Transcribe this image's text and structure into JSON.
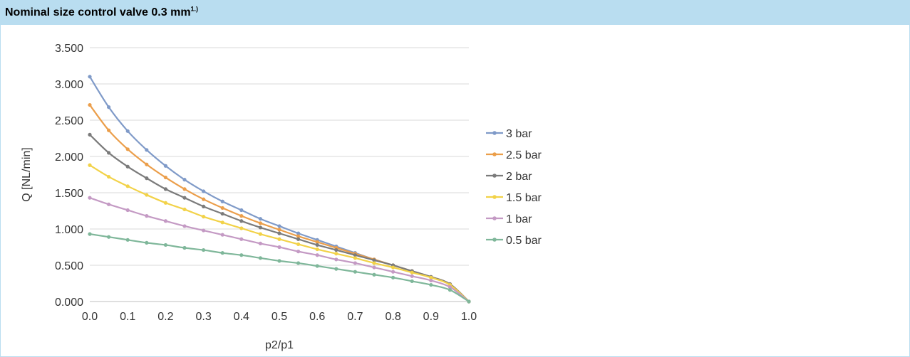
{
  "header": {
    "title": "Nominal size control valve 0.3 mm",
    "title_sup": "1.)"
  },
  "chart_data": {
    "type": "line",
    "title": "Nominal size control valve 0.3 mm",
    "xlabel": "p2/p1",
    "ylabel": "Q [NL/min]",
    "xlim": [
      0.0,
      1.0
    ],
    "ylim": [
      0.0,
      3.5
    ],
    "x_ticks": [
      "0.0",
      "0.1",
      "0.2",
      "0.3",
      "0.4",
      "0.5",
      "0.6",
      "0.7",
      "0.8",
      "0.9",
      "1.0"
    ],
    "y_ticks": [
      "0.000",
      "0.500",
      "1.000",
      "1.500",
      "2.000",
      "2.500",
      "3.000",
      "3.500"
    ],
    "grid": "horizontal",
    "legend_position": "right",
    "series": [
      {
        "name": "3 bar",
        "color": "#7f9ac8",
        "x": [
          0.0,
          0.05,
          0.1,
          0.15,
          0.2,
          0.25,
          0.3,
          0.35,
          0.4,
          0.45,
          0.5,
          0.55,
          0.6,
          0.65,
          0.7,
          0.75,
          0.8,
          0.85,
          0.9,
          0.95,
          1.0
        ],
        "y": [
          3.1,
          2.68,
          2.35,
          2.09,
          1.87,
          1.68,
          1.52,
          1.38,
          1.26,
          1.14,
          1.04,
          0.94,
          0.85,
          0.76,
          0.67,
          0.58,
          0.5,
          0.42,
          0.34,
          0.24,
          0.0
        ]
      },
      {
        "name": "2.5 bar",
        "color": "#eb9e4a",
        "x": [
          0.0,
          0.05,
          0.1,
          0.15,
          0.2,
          0.25,
          0.3,
          0.35,
          0.4,
          0.45,
          0.5,
          0.55,
          0.6,
          0.65,
          0.7,
          0.75,
          0.8,
          0.85,
          0.9,
          0.95,
          1.0
        ],
        "y": [
          2.71,
          2.36,
          2.1,
          1.89,
          1.71,
          1.55,
          1.41,
          1.29,
          1.18,
          1.08,
          0.99,
          0.9,
          0.82,
          0.74,
          0.66,
          0.58,
          0.5,
          0.42,
          0.34,
          0.24,
          0.0
        ]
      },
      {
        "name": "2 bar",
        "color": "#7b7b7b",
        "x": [
          0.0,
          0.05,
          0.1,
          0.15,
          0.2,
          0.25,
          0.3,
          0.35,
          0.4,
          0.45,
          0.5,
          0.55,
          0.6,
          0.65,
          0.7,
          0.75,
          0.8,
          0.85,
          0.9,
          0.95,
          1.0
        ],
        "y": [
          2.3,
          2.05,
          1.86,
          1.7,
          1.55,
          1.43,
          1.31,
          1.21,
          1.11,
          1.02,
          0.94,
          0.86,
          0.78,
          0.71,
          0.64,
          0.57,
          0.5,
          0.42,
          0.34,
          0.24,
          0.0
        ]
      },
      {
        "name": "1.5 bar",
        "color": "#f2d248",
        "x": [
          0.0,
          0.05,
          0.1,
          0.15,
          0.2,
          0.25,
          0.3,
          0.35,
          0.4,
          0.45,
          0.5,
          0.55,
          0.6,
          0.65,
          0.7,
          0.75,
          0.8,
          0.85,
          0.9,
          0.95,
          1.0
        ],
        "y": [
          1.88,
          1.72,
          1.59,
          1.47,
          1.36,
          1.27,
          1.17,
          1.09,
          1.01,
          0.93,
          0.86,
          0.79,
          0.72,
          0.66,
          0.6,
          0.53,
          0.47,
          0.4,
          0.33,
          0.23,
          0.0
        ]
      },
      {
        "name": "1 bar",
        "color": "#c49ac4",
        "x": [
          0.0,
          0.05,
          0.1,
          0.15,
          0.2,
          0.25,
          0.3,
          0.35,
          0.4,
          0.45,
          0.5,
          0.55,
          0.6,
          0.65,
          0.7,
          0.75,
          0.8,
          0.85,
          0.9,
          0.95,
          1.0
        ],
        "y": [
          1.43,
          1.34,
          1.26,
          1.18,
          1.11,
          1.04,
          0.98,
          0.92,
          0.86,
          0.8,
          0.75,
          0.69,
          0.64,
          0.58,
          0.53,
          0.47,
          0.41,
          0.35,
          0.29,
          0.2,
          0.0
        ]
      },
      {
        "name": "0.5 bar",
        "color": "#7fb79a",
        "x": [
          0.0,
          0.05,
          0.1,
          0.15,
          0.2,
          0.25,
          0.3,
          0.35,
          0.4,
          0.45,
          0.5,
          0.55,
          0.6,
          0.65,
          0.7,
          0.75,
          0.8,
          0.85,
          0.9,
          0.95,
          1.0
        ],
        "y": [
          0.93,
          0.89,
          0.85,
          0.81,
          0.78,
          0.74,
          0.71,
          0.67,
          0.64,
          0.6,
          0.56,
          0.53,
          0.49,
          0.45,
          0.41,
          0.37,
          0.33,
          0.28,
          0.23,
          0.16,
          0.0
        ]
      }
    ]
  }
}
